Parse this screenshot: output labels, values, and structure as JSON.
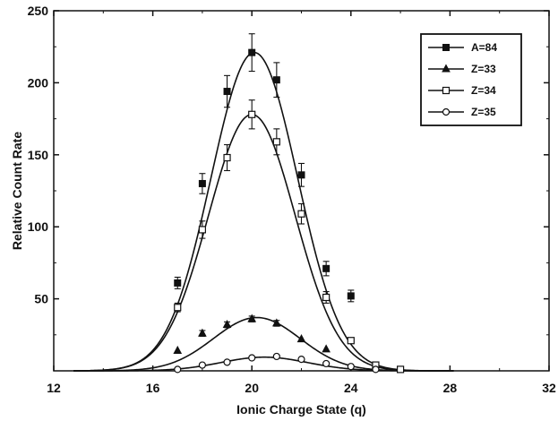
{
  "chart_data": {
    "type": "scatter",
    "xlabel": "Ionic Charge State (q)",
    "ylabel": "Relative Count Rate",
    "xlim": [
      12,
      32
    ],
    "ylim": [
      0,
      250
    ],
    "x_ticks": [
      12,
      16,
      20,
      24,
      28,
      32
    ],
    "y_ticks": [
      50,
      100,
      150,
      200,
      250
    ],
    "y_tick_labels": [
      "50",
      "100",
      "150",
      "200",
      "250"
    ],
    "y_origin_label": "",
    "grid": false,
    "legend_position": "top-right",
    "has_error_bars": true,
    "has_fit_curves": true,
    "series": [
      {
        "name": "A=84",
        "marker": "filled-square",
        "fit_peak": 221,
        "fit_center": 20.1,
        "fit_sigma": 1.75,
        "x": [
          17,
          18,
          19,
          20,
          21,
          22,
          23,
          24
        ],
        "y": [
          61,
          130,
          194,
          221,
          202,
          136,
          71,
          52
        ],
        "err": [
          4,
          7,
          11,
          13,
          12,
          8,
          5,
          4
        ]
      },
      {
        "name": "Z=33",
        "marker": "filled-triangle",
        "fit_peak": 37,
        "fit_center": 20.2,
        "fit_sigma": 1.75,
        "x": [
          17,
          18,
          19,
          20,
          21,
          22,
          23
        ],
        "y": [
          14,
          26,
          32,
          36,
          33,
          22,
          15
        ],
        "err": [
          1,
          2,
          2,
          2,
          2,
          1,
          1
        ]
      },
      {
        "name": "Z=34",
        "marker": "open-square",
        "fit_peak": 178,
        "fit_center": 20.0,
        "fit_sigma": 1.75,
        "x": [
          17,
          18,
          19,
          20,
          21,
          22,
          23,
          24,
          25,
          26
        ],
        "y": [
          44,
          98,
          148,
          178,
          159,
          109,
          51,
          21,
          4,
          1
        ],
        "err": [
          3,
          6,
          9,
          10,
          9,
          7,
          4,
          2,
          1,
          1
        ]
      },
      {
        "name": "Z=35",
        "marker": "open-circle",
        "fit_peak": 9.5,
        "fit_center": 20.5,
        "fit_sigma": 1.75,
        "x": [
          17,
          18,
          19,
          20,
          21,
          22,
          23,
          24,
          25
        ],
        "y": [
          1,
          4,
          6,
          9,
          10,
          8,
          5,
          3,
          1
        ],
        "err": [
          0.5,
          0.5,
          0.5,
          0.5,
          0.5,
          0.5,
          0.5,
          0.5,
          0.5
        ]
      }
    ]
  }
}
